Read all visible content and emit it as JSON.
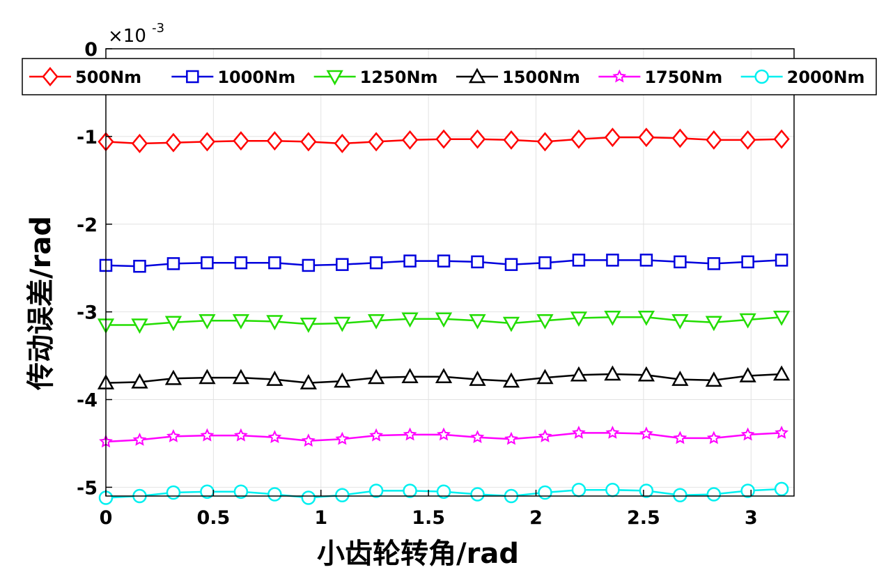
{
  "chart_data": {
    "type": "line",
    "xlabel": "小齿轮转角/rad",
    "ylabel": "传动误差/rad",
    "exponent_label": "×10",
    "exponent_power": "-3",
    "xlim": [
      0,
      3.2
    ],
    "ylim": [
      -5.1,
      0
    ],
    "y_scale": 0.001,
    "x_ticks": [
      0,
      0.5,
      1,
      1.5,
      2,
      2.5,
      3
    ],
    "x_tick_labels": [
      "0",
      "0.5",
      "1",
      "1.5",
      "2",
      "2.5",
      "3"
    ],
    "y_ticks": [
      0,
      -1,
      -2,
      -3,
      -4,
      -5
    ],
    "y_tick_labels": [
      "0",
      "-1",
      "-2",
      "-3",
      "-4",
      "-5"
    ],
    "grid": true,
    "legend_position": "top",
    "x": [
      0,
      0.157,
      0.314,
      0.471,
      0.628,
      0.785,
      0.942,
      1.099,
      1.257,
      1.414,
      1.571,
      1.728,
      1.885,
      2.042,
      2.199,
      2.356,
      2.513,
      2.67,
      2.827,
      2.985,
      3.142
    ],
    "series": [
      {
        "name": "500Nm",
        "color": "#ff0000",
        "marker": "diamond",
        "values": [
          -1.06,
          -1.08,
          -1.07,
          -1.06,
          -1.05,
          -1.05,
          -1.06,
          -1.08,
          -1.06,
          -1.04,
          -1.03,
          -1.03,
          -1.04,
          -1.06,
          -1.03,
          -1.01,
          -1.01,
          -1.02,
          -1.04,
          -1.04,
          -1.03
        ]
      },
      {
        "name": "1000Nm",
        "color": "#0000dd",
        "marker": "square",
        "values": [
          -2.47,
          -2.48,
          -2.45,
          -2.44,
          -2.44,
          -2.44,
          -2.47,
          -2.46,
          -2.44,
          -2.42,
          -2.42,
          -2.43,
          -2.46,
          -2.44,
          -2.41,
          -2.41,
          -2.41,
          -2.43,
          -2.45,
          -2.43,
          -2.41
        ]
      },
      {
        "name": "1250Nm",
        "color": "#22dd00",
        "marker": "triangle-down",
        "values": [
          -3.15,
          -3.15,
          -3.12,
          -3.1,
          -3.1,
          -3.11,
          -3.14,
          -3.13,
          -3.1,
          -3.08,
          -3.08,
          -3.1,
          -3.13,
          -3.1,
          -3.07,
          -3.06,
          -3.06,
          -3.1,
          -3.12,
          -3.09,
          -3.06
        ]
      },
      {
        "name": "1500Nm",
        "color": "#000000",
        "marker": "triangle-up",
        "values": [
          -3.81,
          -3.8,
          -3.76,
          -3.75,
          -3.75,
          -3.77,
          -3.81,
          -3.79,
          -3.75,
          -3.74,
          -3.74,
          -3.77,
          -3.79,
          -3.75,
          -3.72,
          -3.71,
          -3.72,
          -3.77,
          -3.78,
          -3.73,
          -3.71
        ]
      },
      {
        "name": "1750Nm",
        "color": "#ff00ff",
        "marker": "star",
        "values": [
          -4.48,
          -4.46,
          -4.42,
          -4.41,
          -4.41,
          -4.43,
          -4.47,
          -4.45,
          -4.41,
          -4.4,
          -4.4,
          -4.43,
          -4.45,
          -4.42,
          -4.38,
          -4.38,
          -4.39,
          -4.44,
          -4.44,
          -4.4,
          -4.38
        ]
      },
      {
        "name": "2000Nm",
        "color": "#00f0f0",
        "marker": "circle",
        "values": [
          -5.12,
          -5.1,
          -5.06,
          -5.05,
          -5.05,
          -5.08,
          -5.12,
          -5.09,
          -5.04,
          -5.04,
          -5.05,
          -5.08,
          -5.1,
          -5.06,
          -5.03,
          -5.03,
          -5.04,
          -5.09,
          -5.08,
          -5.04,
          -5.02
        ]
      }
    ]
  }
}
